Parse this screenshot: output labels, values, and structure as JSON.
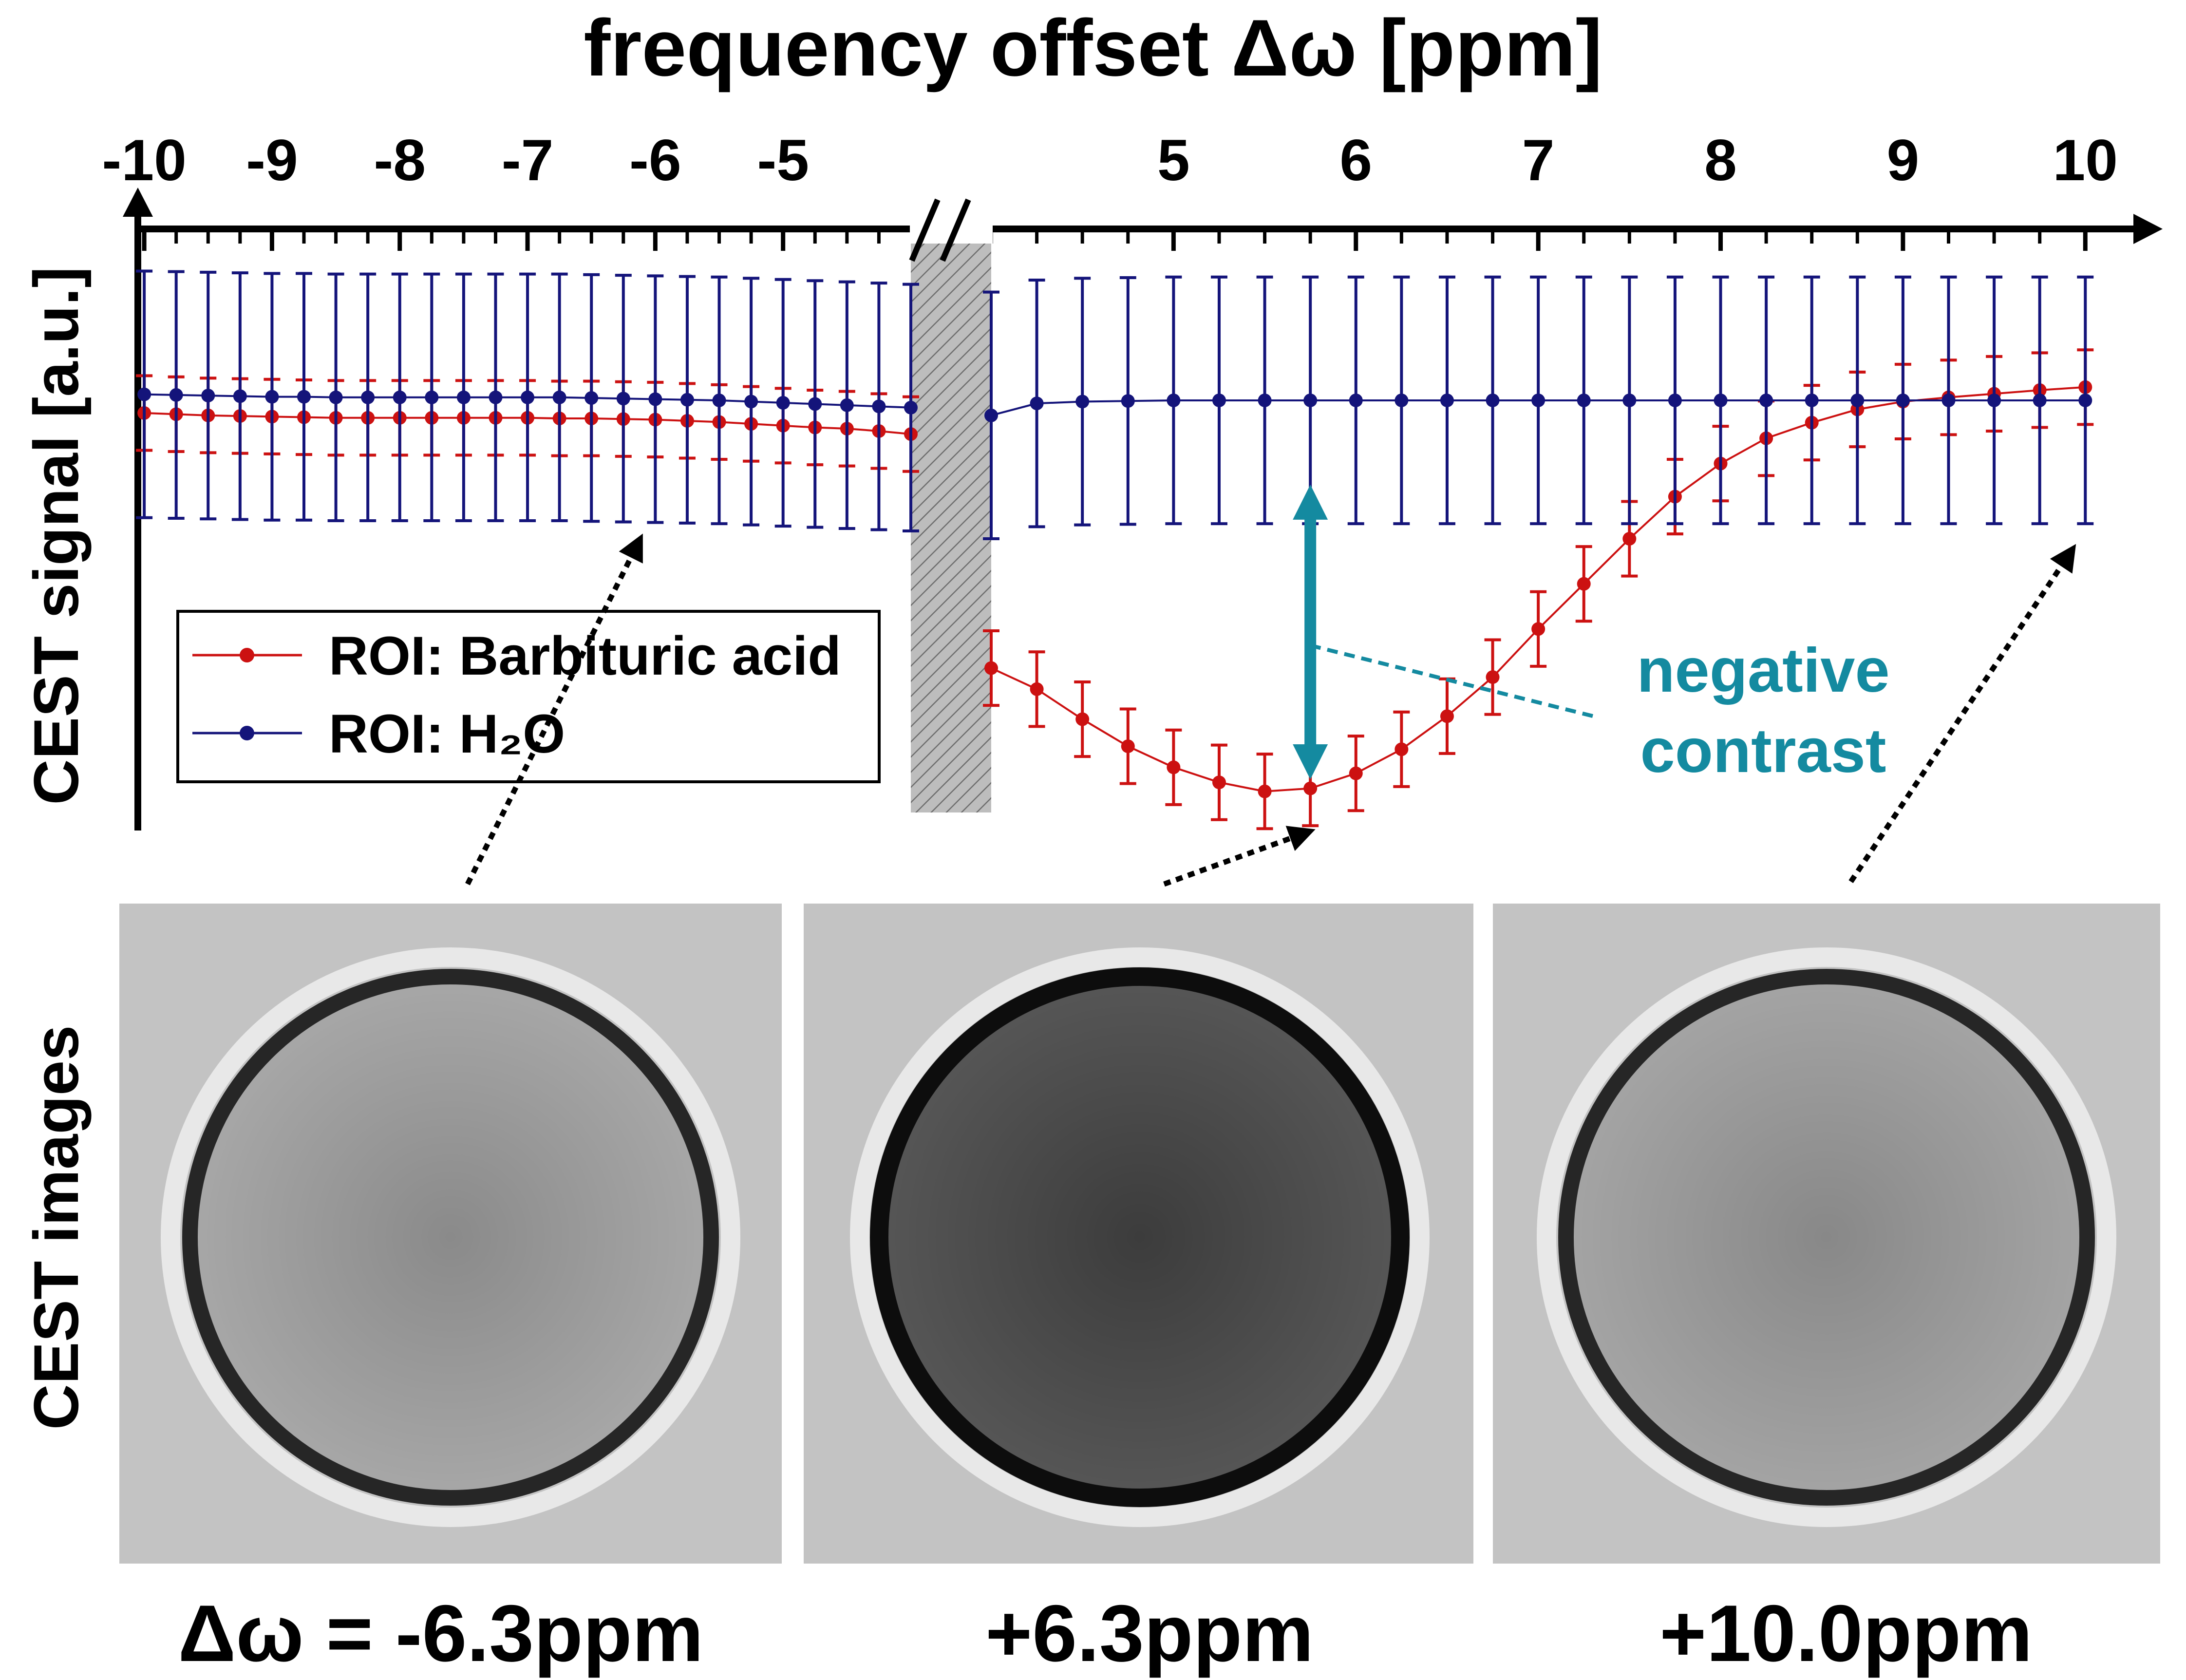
{
  "chart_data": {
    "type": "line",
    "title": "frequency offset Δω [ppm]",
    "xlabel": "frequency offset Δω [ppm]",
    "ylabel": "CEST signal [a.u.]",
    "x_tick_labels_left": [
      "-10",
      "-9",
      "-8",
      "-7",
      "-6",
      "-5"
    ],
    "x_tick_values_left": [
      -10,
      -9,
      -8,
      -7,
      -6,
      -5
    ],
    "x_tick_labels_right": [
      "5",
      "6",
      "7",
      "8",
      "9",
      "10"
    ],
    "x_tick_values_right": [
      5,
      6,
      7,
      8,
      9,
      10
    ],
    "xlim_left": [
      -10.05,
      -4.0
    ],
    "xlim_right": [
      4.0,
      10.05
    ],
    "ylim": [
      0.0,
      1.0
    ],
    "axis_break": true,
    "y_ticks_shown": false,
    "legend_position": "left-middle",
    "series": [
      {
        "name": "ROI: Barbituric acid",
        "color": "#cc1111",
        "x_left": [
          -10.0,
          -9.75,
          -9.5,
          -9.25,
          -9.0,
          -8.75,
          -8.5,
          -8.25,
          -8.0,
          -7.75,
          -7.5,
          -7.25,
          -7.0,
          -6.75,
          -6.5,
          -6.25,
          -6.0,
          -5.75,
          -5.5,
          -5.25,
          -5.0,
          -4.75,
          -4.5,
          -4.25,
          -4.0
        ],
        "y_left": [
          0.694,
          0.692,
          0.69,
          0.689,
          0.688,
          0.687,
          0.686,
          0.686,
          0.686,
          0.686,
          0.686,
          0.686,
          0.686,
          0.685,
          0.685,
          0.684,
          0.683,
          0.681,
          0.679,
          0.676,
          0.673,
          0.67,
          0.668,
          0.664,
          0.659
        ],
        "err_left": 0.062,
        "x_right": [
          4.0,
          4.25,
          4.5,
          4.75,
          5.0,
          5.25,
          5.5,
          5.75,
          6.0,
          6.25,
          6.5,
          6.75,
          7.0,
          7.25,
          7.5,
          7.75,
          8.0,
          8.25,
          8.5,
          8.75,
          9.0,
          9.25,
          9.5,
          9.75,
          10.0
        ],
        "y_right": [
          0.27,
          0.235,
          0.185,
          0.14,
          0.105,
          0.08,
          0.065,
          0.07,
          0.095,
          0.135,
          0.19,
          0.255,
          0.335,
          0.41,
          0.485,
          0.555,
          0.61,
          0.652,
          0.678,
          0.7,
          0.713,
          0.72,
          0.726,
          0.732,
          0.737
        ],
        "err_right": [
          0.062,
          0.062,
          0.062,
          0.062,
          0.062,
          0.062,
          0.062,
          0.062,
          0.062,
          0.062,
          0.062,
          0.062,
          0.062,
          0.062,
          0.062,
          0.062,
          0.062,
          0.062,
          0.062,
          0.062,
          0.062,
          0.062,
          0.062,
          0.062,
          0.062
        ]
      },
      {
        "name": "ROI: H₂O",
        "color": "#14147a",
        "x_left": [
          -10.0,
          -9.75,
          -9.5,
          -9.25,
          -9.0,
          -8.75,
          -8.5,
          -8.25,
          -8.0,
          -7.75,
          -7.5,
          -7.25,
          -7.0,
          -6.75,
          -6.5,
          -6.25,
          -6.0,
          -5.75,
          -5.5,
          -5.25,
          -5.0,
          -4.75,
          -4.5,
          -4.25,
          -4.0
        ],
        "y_left": [
          0.725,
          0.724,
          0.723,
          0.722,
          0.721,
          0.721,
          0.72,
          0.72,
          0.72,
          0.72,
          0.72,
          0.72,
          0.72,
          0.72,
          0.719,
          0.718,
          0.717,
          0.716,
          0.715,
          0.713,
          0.711,
          0.709,
          0.707,
          0.705,
          0.703
        ],
        "err_left": 0.205,
        "x_right": [
          4.0,
          4.25,
          4.5,
          4.75,
          5.0,
          5.25,
          5.5,
          5.75,
          6.0,
          6.25,
          6.5,
          6.75,
          7.0,
          7.25,
          7.5,
          7.75,
          8.0,
          8.25,
          8.5,
          8.75,
          9.0,
          9.25,
          9.5,
          9.75,
          10.0
        ],
        "y_right": [
          0.69,
          0.71,
          0.713,
          0.714,
          0.715,
          0.715,
          0.715,
          0.715,
          0.715,
          0.715,
          0.715,
          0.715,
          0.715,
          0.715,
          0.715,
          0.715,
          0.715,
          0.715,
          0.715,
          0.715,
          0.715,
          0.715,
          0.715,
          0.715,
          0.715
        ],
        "err_right": 0.205
      }
    ],
    "annotations": {
      "contrast_label_line1": "negative",
      "contrast_label_line2": "contrast",
      "contrast_color": "#148aa0",
      "contrast_arrow_x": 5.75,
      "contrast_arrow_y_top": 0.54,
      "contrast_arrow_y_bottom": 0.12
    }
  },
  "images": {
    "section_label": "CEST images",
    "items": [
      {
        "label": "Δω = -6.3ppm",
        "ring_color": "#262626",
        "disc_color": "#a7a7a7",
        "center_color": "#8a8a8a",
        "bg_color": "#c3c3c3"
      },
      {
        "label": "+6.3ppm",
        "ring_color": "#0d0d0d",
        "disc_color": "#565656",
        "center_color": "#3c3c3c",
        "bg_color": "#c3c3c3"
      },
      {
        "label": "+10.0ppm",
        "ring_color": "#262626",
        "disc_color": "#a4a4a4",
        "center_color": "#888888",
        "bg_color": "#c3c3c3"
      }
    ]
  }
}
